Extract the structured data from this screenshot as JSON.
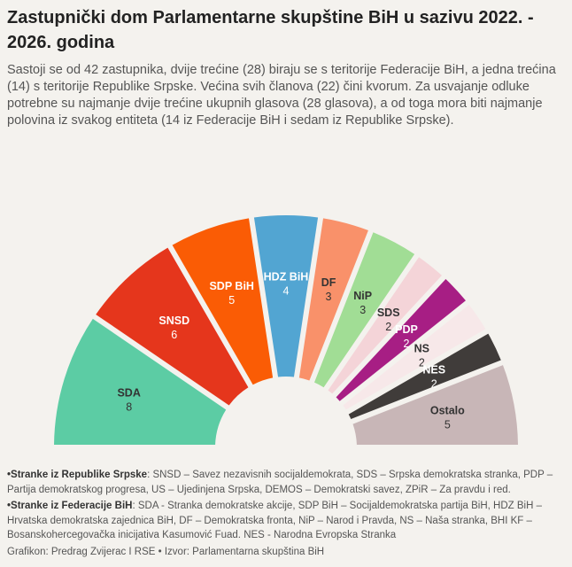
{
  "title": "Zastupnički dom Parlamentarne skupštine BiH u sazivu 2022. - 2026. godina",
  "description": "Sastoji se od 42 zastupnika, dvije trećine (28) biraju se s teritorije Federacije BiH, a jedna trećina (14) s teritorije Republike Srpske. Većina svih članova (22) čini kvorum. Za usvajanje odluke potrebne su najmanje dvije trećine ukupnih glasova (28 glasova), a od toga mora biti najmanje polovina iz svakog entiteta (14 iz Federacije BiH i sedam iz Republike Srpske).",
  "notes": {
    "rs_label": "•Stranke iz Republike Srpske",
    "rs_text": ": SNSD – Savez nezavisnih socijaldemokrata, SDS – Srpska demokratska stranka, PDP – Partija demokratskog progresa, US – Ujedinjena Srpska, DEMOS – Demokratski savez, ZPiR – Za pravdu i red.",
    "fbih_label": "•Stranke iz Federacije BiH",
    "fbih_text": ": SDA - Stranka demokratske akcije, SDP BiH – Socijaldemokratska partija BiH, HDZ BiH – Hrvatska demokratska zajednica BiH, DF – Demokratska fronta, NiP – Narod i Pravda, NS – Naša stranka, BHI KF – Bosanskohercegovačka inicijativa Kasumović Fuad. NES - Narodna Evropska Stranka"
  },
  "credit": "Grafikon: Predrag Zvijerac I RSE • Izvor: Parlamentarna skupština BiH",
  "chart_data": {
    "type": "pie",
    "variant": "semicircle-parliament",
    "total": 42,
    "categories": [
      "SDA",
      "SNSD",
      "SDP BiH",
      "HDZ BiH",
      "DF",
      "NiP",
      "SDS",
      "PDP",
      "NS",
      "NES",
      "Ostalo"
    ],
    "values": [
      8,
      6,
      5,
      4,
      3,
      3,
      2,
      2,
      2,
      2,
      5
    ],
    "colors": [
      "#5ccca4",
      "#e5361c",
      "#fa5c05",
      "#52a5d2",
      "#f9916a",
      "#a1dd95",
      "#f4d4d8",
      "#a71e84",
      "#f7e8e9",
      "#403c3a",
      "#c8b6b7"
    ],
    "label_colors": [
      "#333333",
      "#ffffff",
      "#ffffff",
      "#ffffff",
      "#333333",
      "#333333",
      "#333333",
      "#ffffff",
      "#333333",
      "#ffffff",
      "#333333"
    ]
  }
}
